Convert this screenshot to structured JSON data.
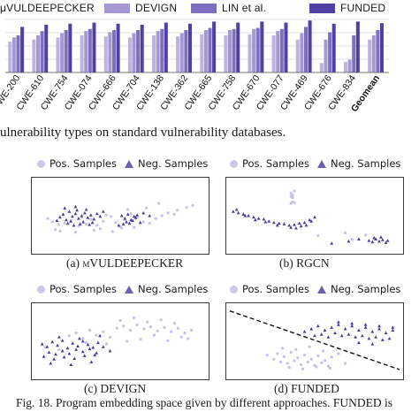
{
  "top_figure": {
    "legend": [
      {
        "label": "μVULDEEPECKER",
        "color": "#bdb3df"
      },
      {
        "label": "DEVIGN",
        "color": "#a597d3"
      },
      {
        "label": "LIN et al.",
        "color": "#7f6fc1"
      },
      {
        "label": "FUNDED",
        "color": "#5140a3"
      }
    ],
    "caption_fragment": "ulnerability types on standard vulnerability databases."
  },
  "chart_data": [
    {
      "type": "bar",
      "categories": [
        "CWE-200",
        "CWE-610",
        "CWE-754",
        "CWE-074",
        "CWE-666",
        "CWE-704",
        "CWE-138",
        "CWE-362",
        "CWE-665",
        "CWE-758",
        "CWE-670",
        "CWE-077",
        "CWE-469",
        "CWE-676",
        "CWE-834",
        "Geomean"
      ],
      "series": [
        {
          "name": "μVULDEEPECKER",
          "values": [
            0.58,
            0.62,
            0.66,
            0.7,
            0.68,
            0.66,
            0.7,
            0.68,
            0.72,
            0.7,
            0.72,
            0.7,
            0.62,
            0.18,
            0.2,
            0.62
          ]
        },
        {
          "name": "DEVIGN",
          "values": [
            0.66,
            0.7,
            0.74,
            0.78,
            0.76,
            0.74,
            0.78,
            0.74,
            0.8,
            0.8,
            0.82,
            0.78,
            0.74,
            0.62,
            0.24,
            0.7
          ]
        },
        {
          "name": "LIN et al.",
          "values": [
            0.7,
            0.78,
            0.8,
            0.82,
            0.8,
            0.8,
            0.82,
            0.8,
            0.84,
            0.82,
            0.84,
            0.82,
            0.86,
            0.76,
            0.7,
            0.8
          ]
        },
        {
          "name": "FUNDED",
          "values": [
            0.86,
            0.9,
            0.92,
            0.94,
            0.92,
            0.9,
            0.94,
            0.92,
            0.96,
            0.94,
            0.96,
            0.94,
            0.98,
            0.92,
            0.96,
            0.93
          ]
        }
      ],
      "ylim": [
        0,
        1
      ],
      "grid": true,
      "legend_placement": "top"
    },
    {
      "type": "scatter",
      "caption_prefix": "(a) ",
      "caption_name": "μVULDEEPECKER",
      "legend": [
        "Pos. Samples",
        "Neg. Samples"
      ],
      "series": [
        {
          "name": "Pos. Samples",
          "x": [
            -0.2,
            0.1,
            0.5,
            0.9,
            1.3,
            1.8,
            2.3,
            2.6,
            3.0,
            3.4,
            3.6,
            3.9,
            4.2,
            4.5,
            4.8,
            5.2,
            5.6,
            6.0,
            6.4,
            6.8,
            7.2,
            7.6,
            8.2,
            8.8,
            9.2,
            0.6,
            1.6,
            2.8,
            3.2,
            4.0,
            4.6,
            5.0,
            6.2,
            7.0,
            0.3,
            2.0,
            5.4,
            8.0
          ],
          "y": [
            4.6,
            4.1,
            3.7,
            3.9,
            4.3,
            3.5,
            3.8,
            4.5,
            3.6,
            4.2,
            5.1,
            4.9,
            4.0,
            3.4,
            4.4,
            5.3,
            4.8,
            4.1,
            3.9,
            4.6,
            5.0,
            5.4,
            5.8,
            6.2,
            6.5,
            2.8,
            2.6,
            2.9,
            3.1,
            2.7,
            3.2,
            5.9,
            6.1,
            6.8,
            3.0,
            4.8,
            3.3,
            5.2
          ]
        },
        {
          "name": "Neg. Samples",
          "x": [
            0.6,
            0.8,
            1.0,
            1.2,
            1.4,
            1.6,
            1.8,
            2.0,
            2.2,
            2.4,
            2.6,
            2.8,
            3.0,
            3.2,
            1.1,
            1.3,
            1.5,
            1.7,
            1.9,
            2.1,
            2.3,
            2.5,
            0.9,
            1.6,
            2.7,
            4.6,
            4.8,
            5.0,
            5.2,
            5.4,
            5.6,
            4.7,
            4.9,
            5.1,
            5.3,
            5.5,
            0.4,
            3.4,
            6.0,
            6.4,
            4.4,
            5.8
          ],
          "y": [
            4.8,
            5.2,
            4.4,
            5.6,
            4.9,
            5.3,
            4.6,
            5.0,
            5.4,
            4.7,
            5.1,
            4.5,
            5.3,
            4.9,
            3.9,
            4.2,
            3.6,
            5.8,
            3.8,
            4.1,
            5.9,
            3.7,
            6.1,
            6.3,
            4.0,
            5.0,
            4.6,
            5.2,
            4.4,
            4.9,
            5.1,
            3.8,
            4.1,
            3.9,
            4.3,
            4.7,
            4.3,
            5.6,
            5.4,
            5.0,
            3.6,
            4.0
          ]
        }
      ],
      "xlim": [
        -1,
        10
      ],
      "ylim": [
        0,
        10
      ]
    },
    {
      "type": "scatter",
      "caption_prefix": "(b) ",
      "caption_name": "RGCN",
      "legend": [
        "Pos. Samples",
        "Neg. Samples"
      ],
      "series": [
        {
          "name": "Pos. Samples",
          "x": [
            3.6,
            3.7,
            3.6,
            3.8,
            3.7,
            3.6,
            3.7,
            3.8,
            5.2,
            6.8,
            7.2,
            8.0
          ],
          "y": [
            7.8,
            8.0,
            8.3,
            8.6,
            7.6,
            6.8,
            7.0,
            6.9,
            2.1,
            2.5,
            1.6,
            2.2
          ]
        },
        {
          "name": "Neg. Samples",
          "x": [
            0.2,
            0.5,
            0.8,
            1.1,
            1.4,
            1.7,
            2.0,
            2.3,
            2.6,
            2.9,
            3.2,
            3.5,
            3.8,
            4.1,
            4.4,
            4.7,
            5.0,
            3.6,
            3.9,
            4.2,
            4.5,
            4.8,
            0.4,
            0.9,
            1.5,
            2.1,
            2.8,
            8.2,
            8.4,
            8.6,
            8.8,
            9.0,
            9.2,
            8.5,
            8.9,
            9.3,
            6.0,
            7.0,
            7.6
          ],
          "y": [
            5.6,
            5.4,
            5.2,
            5.0,
            4.8,
            4.6,
            4.5,
            4.2,
            4.0,
            3.9,
            3.8,
            3.6,
            3.7,
            3.9,
            4.0,
            4.4,
            4.8,
            3.3,
            3.2,
            3.5,
            3.6,
            4.2,
            5.9,
            5.0,
            4.4,
            4.1,
            3.6,
            1.4,
            1.2,
            1.6,
            1.3,
            1.5,
            1.1,
            1.8,
            1.9,
            1.4,
            1.0,
            1.3,
            1.6
          ]
        }
      ],
      "xlim": [
        0,
        10
      ],
      "ylim": [
        0,
        10
      ]
    },
    {
      "type": "scatter",
      "caption_prefix": "(c) ",
      "caption_name": "DEVIGN",
      "legend": [
        "Pos. Samples",
        "Neg. Samples"
      ],
      "series": [
        {
          "name": "Pos. Samples",
          "x": [
            2.0,
            2.4,
            2.8,
            3.2,
            3.6,
            4.0,
            4.4,
            4.8,
            5.2,
            5.6,
            6.0,
            6.4,
            6.8,
            7.2,
            7.6,
            8.0,
            8.4,
            8.8,
            9.2,
            5.0,
            5.8,
            6.6,
            7.4,
            8.2,
            3.0,
            4.2,
            5.4,
            6.2,
            7.0,
            7.8,
            8.6,
            9.0,
            0.6,
            1.4
          ],
          "y": [
            5.8,
            6.2,
            5.4,
            6.6,
            5.9,
            6.4,
            5.6,
            6.9,
            7.2,
            6.6,
            7.4,
            6.8,
            7.1,
            6.5,
            7.0,
            6.4,
            6.9,
            6.2,
            6.6,
            8.0,
            8.4,
            7.8,
            8.1,
            7.6,
            4.8,
            4.6,
            5.0,
            5.3,
            5.9,
            5.1,
            5.6,
            5.4,
            4.2,
            3.8
          ]
        },
        {
          "name": "Neg. Samples",
          "x": [
            0.4,
            0.7,
            1.0,
            1.3,
            1.6,
            1.9,
            2.2,
            2.5,
            2.8,
            3.1,
            3.4,
            3.7,
            4.0,
            0.8,
            1.2,
            1.6,
            2.0,
            2.4,
            2.8,
            3.2,
            3.6,
            0.5,
            1.1,
            1.7,
            2.3,
            2.9,
            3.5,
            1.4,
            2.6,
            3.8,
            4.4,
            0.9,
            2.1,
            3.3
          ],
          "y": [
            4.6,
            4.2,
            4.9,
            4.4,
            5.1,
            4.0,
            4.7,
            4.3,
            5.0,
            4.5,
            4.1,
            4.8,
            4.2,
            3.4,
            3.1,
            3.6,
            3.2,
            3.8,
            3.5,
            3.9,
            3.3,
            2.8,
            2.4,
            2.7,
            2.5,
            2.9,
            3.0,
            5.6,
            5.4,
            5.8,
            3.6,
            1.8,
            1.6,
            2.0
          ]
        }
      ],
      "xlim": [
        0,
        10
      ],
      "ylim": [
        0,
        10
      ]
    },
    {
      "type": "scatter",
      "caption_prefix": "(d) ",
      "caption_name": "FUNDED",
      "legend": [
        "Pos. Samples",
        "Neg. Samples"
      ],
      "series": [
        {
          "name": "Pos. Samples",
          "x": [
            2.8,
            3.2,
            3.6,
            4.0,
            4.4,
            4.8,
            5.2,
            5.6,
            6.0,
            3.0,
            3.4,
            3.8,
            4.2,
            4.6,
            5.0,
            5.4,
            5.8,
            3.1,
            3.9,
            4.7,
            5.5,
            2.6,
            6.4,
            3.5,
            4.3,
            5.1,
            5.9,
            2.2,
            6.8
          ],
          "y": [
            3.2,
            2.8,
            3.4,
            2.6,
            3.0,
            2.4,
            2.9,
            2.2,
            2.7,
            2.0,
            1.8,
            2.2,
            1.6,
            2.0,
            1.5,
            1.9,
            1.4,
            4.0,
            3.8,
            4.2,
            3.6,
            2.4,
            3.2,
            1.2,
            1.0,
            1.3,
            1.1,
            3.0,
            1.8
          ]
        },
        {
          "name": "Neg. Samples",
          "x": [
            4.4,
            4.8,
            5.2,
            5.6,
            6.0,
            6.4,
            6.8,
            7.2,
            7.6,
            8.0,
            8.4,
            8.8,
            9.2,
            9.6,
            5.0,
            5.4,
            5.8,
            6.2,
            6.6,
            7.0,
            7.4,
            7.8,
            8.2,
            8.6,
            9.0,
            9.4,
            6.4,
            7.2,
            8.0,
            8.8,
            9.6,
            7.6,
            8.4
          ],
          "y": [
            6.4,
            6.8,
            7.2,
            6.6,
            7.0,
            7.4,
            6.8,
            7.2,
            6.6,
            7.0,
            6.4,
            6.8,
            6.2,
            6.6,
            5.8,
            6.0,
            5.6,
            6.2,
            5.8,
            6.0,
            5.6,
            5.8,
            5.4,
            5.6,
            5.2,
            5.4,
            7.8,
            7.6,
            7.4,
            7.2,
            7.0,
            4.8,
            4.6
          ]
        }
      ],
      "xlim": [
        0,
        10
      ],
      "ylim": [
        0,
        10
      ]
    }
  ],
  "figure_caption": "Fig. 18.   Program embedding space given by different approaches. FUNDED is"
}
